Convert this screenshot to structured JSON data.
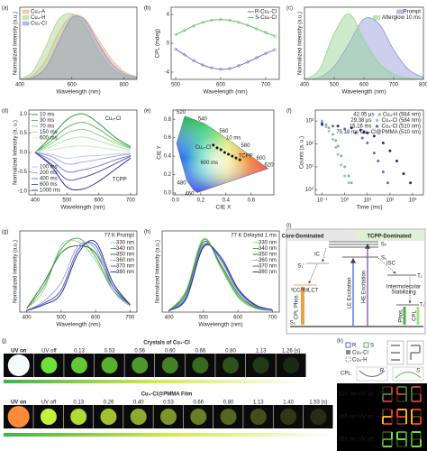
{
  "chart_data": [
    {
      "panel": "(a)",
      "type": "area",
      "xlabel": "Wavelength (nm)",
      "ylabel": "Normalized Intensity (a.u.)",
      "xlim": [
        400,
        850
      ],
      "ylim": [
        0,
        1.1
      ],
      "xticks": [
        400,
        600,
        800
      ],
      "legend": "upper left",
      "x": [
        400,
        450,
        500,
        550,
        600,
        650,
        700,
        750,
        800,
        850
      ],
      "series": [
        {
          "name": "Cu₄-A",
          "color": "#f4b183",
          "values": [
            0,
            0.06,
            0.3,
            0.72,
            0.97,
            0.92,
            0.62,
            0.32,
            0.12,
            0.04
          ]
        },
        {
          "name": "Cu₄-H",
          "color": "#a9d18e",
          "values": [
            0,
            0.12,
            0.5,
            0.92,
            1.0,
            0.82,
            0.45,
            0.18,
            0.06,
            0.02
          ]
        },
        {
          "name": "Cu₄-Cl",
          "color": "#8f96cc",
          "values": [
            0,
            0.03,
            0.18,
            0.58,
            0.94,
            0.9,
            0.56,
            0.26,
            0.09,
            0.03
          ]
        }
      ]
    },
    {
      "panel": "(b)",
      "type": "line",
      "markers": true,
      "xlabel": "Wavelength (nm)",
      "ylabel": "CPL (mdeg)",
      "xlim": [
        490,
        730
      ],
      "ylim": [
        -5,
        5
      ],
      "xticks": [
        500,
        600,
        700
      ],
      "yticks": [
        -4,
        0,
        4
      ],
      "legend": "upper right",
      "x": [
        500,
        520,
        540,
        560,
        580,
        600,
        620,
        640,
        660,
        680,
        700,
        720
      ],
      "series": [
        {
          "name": "R-Cu₄-Cl",
          "color": "#6f6fc9",
          "values": [
            -0.8,
            -1.6,
            -2.4,
            -3.0,
            -3.4,
            -3.6,
            -3.5,
            -3.1,
            -2.6,
            -2.0,
            -1.4,
            -0.9
          ]
        },
        {
          "name": "S-Cu₄-Cl",
          "color": "#5fbf5f",
          "values": [
            1.2,
            1.8,
            2.4,
            2.9,
            3.2,
            3.3,
            3.2,
            2.9,
            2.5,
            2.0,
            1.5,
            1.0
          ]
        }
      ]
    },
    {
      "panel": "(c)",
      "type": "area",
      "xlabel": "Wavelength (nm)",
      "ylabel": "Normalized Intensity (a.u.)",
      "xlim": [
        400,
        800
      ],
      "ylim": [
        0,
        1.1
      ],
      "xticks": [
        400,
        500,
        600,
        700,
        800
      ],
      "legend": "upper right",
      "x": [
        400,
        450,
        500,
        550,
        600,
        650,
        700,
        750,
        800
      ],
      "series": [
        {
          "name": "Prompt",
          "color": "#8e96d8",
          "values": [
            0,
            0.03,
            0.2,
            0.55,
            0.92,
            0.85,
            0.45,
            0.15,
            0.03
          ]
        },
        {
          "name": "Afterglow 10 ms",
          "color": "#90d38f",
          "values": [
            0,
            0.15,
            0.7,
            1.0,
            0.6,
            0.25,
            0.08,
            0.02,
            0
          ]
        }
      ]
    },
    {
      "panel": "(d)",
      "type": "line",
      "xlabel": "Wavelength (nm)",
      "ylabel": "Normalized Intensity (a. u.)",
      "xlim": [
        380,
        720
      ],
      "ylim": [
        -1.1,
        1.1
      ],
      "xticks": [
        400,
        500,
        600,
        700
      ],
      "yticks": [
        {
          "value": -1,
          "label": "-1.0"
        },
        -0.5,
        {
          "value": 0,
          "label": "0.0"
        },
        0.5,
        {
          "value": 1,
          "label": "1.0"
        }
      ],
      "legend": "upper left",
      "annotations": [
        "Cu₄-Cl",
        "TCPP"
      ],
      "x": [
        400,
        450,
        500,
        550,
        600,
        650,
        700
      ],
      "series": [
        {
          "name": "10 ms",
          "color": "#2e9e3e",
          "values": [
            0,
            0.4,
            0.85,
            1.0,
            0.75,
            0.4,
            0.15
          ]
        },
        {
          "name": "30 ms",
          "color": "#5cb85c",
          "values": [
            0,
            0.3,
            0.65,
            0.78,
            0.6,
            0.32,
            0.12
          ]
        },
        {
          "name": "70 ms",
          "color": "#8fcf8f",
          "values": [
            0,
            0.22,
            0.5,
            0.6,
            0.45,
            0.25,
            0.1
          ]
        },
        {
          "name": "150 ms",
          "color": "#b5dfb5",
          "values": [
            0,
            0.15,
            0.33,
            0.4,
            0.3,
            0.17,
            0.06
          ]
        },
        {
          "name": "600 ms",
          "color": "#cfe8cf",
          "values": [
            0,
            0.06,
            0.14,
            0.17,
            0.13,
            0.07,
            0.03
          ]
        },
        {
          "name": "100 ms",
          "color": "#c7c9e8",
          "values": [
            0,
            -0.05,
            -0.15,
            -0.1,
            -0.08,
            -0.04,
            -0.02
          ]
        },
        {
          "name": "200 ms",
          "color": "#a3a7da",
          "values": [
            0,
            -0.1,
            -0.3,
            -0.25,
            -0.18,
            -0.1,
            -0.04
          ]
        },
        {
          "name": "400 ms",
          "color": "#7a80c9",
          "values": [
            0,
            -0.2,
            -0.5,
            -0.45,
            -0.35,
            -0.2,
            -0.08
          ]
        },
        {
          "name": "600 ms",
          "color": "#5258b5",
          "values": [
            0,
            -0.3,
            -0.7,
            -0.65,
            -0.5,
            -0.3,
            -0.1
          ]
        },
        {
          "name": "1000 ms",
          "color": "#2d3396",
          "values": [
            0,
            -0.35,
            -0.9,
            -0.95,
            -0.75,
            -0.45,
            -0.15
          ]
        }
      ]
    },
    {
      "panel": "(e)",
      "type": "cie",
      "xlabel": "CIE X",
      "ylabel": "CIE Y",
      "xlim": [
        -0.02,
        0.78
      ],
      "ylim": [
        -0.02,
        0.9
      ],
      "xticks": [
        {
          "value": 0,
          "label": "0.0"
        },
        0.2,
        0.4,
        0.6
      ],
      "yticks": [
        {
          "value": 0,
          "label": "0.0"
        },
        0.2,
        0.4,
        0.6,
        0.8
      ],
      "locus": {
        "labels": [
          null,
          "460",
          "480",
          null,
          "520",
          "540",
          "560",
          "580",
          "600",
          "620",
          null
        ],
        "x": [
          0.174,
          0.144,
          0.091,
          0.008,
          0.074,
          0.23,
          0.373,
          0.512,
          0.627,
          0.691,
          0.735
        ],
        "y": [
          0.005,
          0.03,
          0.133,
          0.538,
          0.834,
          0.754,
          0.624,
          0.487,
          0.372,
          0.308,
          0.265
        ]
      },
      "annotations": [
        "Cu₄-Cl",
        "10 ms",
        "600 ms",
        "TCPP"
      ],
      "series": [
        {
          "color": "#111111",
          "x": [
            0.3,
            0.33,
            0.36,
            0.39,
            0.42,
            0.45,
            0.48,
            0.51
          ],
          "values": [
            0.52,
            0.49,
            0.47,
            0.44,
            0.42,
            0.4,
            0.38,
            0.36
          ]
        }
      ]
    },
    {
      "panel": "(f)",
      "type": "scatter",
      "xscale": "log",
      "yscale": "log",
      "xlabel": "Time (ms)",
      "ylabel": "Counts (a. u.)",
      "xlim": [
        0.05,
        3000
      ],
      "ylim": [
        0.6,
        3000
      ],
      "xticks": [
        {
          "value": 0.1,
          "label": "10⁻¹"
        },
        {
          "value": 1,
          "label": "10⁰"
        },
        {
          "value": 10,
          "label": "10¹"
        },
        {
          "value": 100,
          "label": "10²"
        },
        {
          "value": 1000,
          "label": "10³"
        }
      ],
      "yticks": [
        {
          "value": 1,
          "label": "10⁰"
        },
        {
          "value": 10,
          "label": "10¹"
        },
        {
          "value": 100,
          "label": "10²"
        },
        {
          "value": 1000,
          "label": "10³"
        }
      ],
      "legend": "upper right",
      "series": [
        {
          "name": "Cu₄-H (584 nm)",
          "lifetime": "42.05 μs",
          "color": "#7cc47c",
          "x": [
            0.1,
            0.15,
            0.2,
            0.3,
            0.4,
            0.5,
            0.7,
            1,
            1.5,
            2
          ],
          "values": [
            1000,
            700,
            500,
            260,
            140,
            80,
            30,
            10,
            4,
            2
          ]
        },
        {
          "name": "Cu₄-Cl (584 nm)",
          "lifetime": "29.38 μs",
          "color": "#b0b0e6",
          "x": [
            0.1,
            0.15,
            0.2,
            0.3,
            0.4,
            0.5,
            0.7,
            1,
            1.5
          ],
          "values": [
            900,
            560,
            360,
            160,
            70,
            35,
            12,
            4,
            2
          ]
        },
        {
          "name": "Cu₄-Cl (510 nm)",
          "lifetime": "15.16 ms",
          "color": "#5a68d2",
          "x": [
            0.1,
            0.3,
            1,
            3,
            6,
            10,
            20,
            30,
            50,
            80
          ],
          "values": [
            800,
            600,
            450,
            300,
            180,
            110,
            40,
            18,
            6,
            2
          ]
        },
        {
          "name": "Cu₄-Cl@PMMA (510 nm)",
          "lifetime": "75.18 ms",
          "color": "#1f2d8c",
          "x": [
            0.1,
            0.5,
            2,
            5,
            10,
            20,
            50,
            100,
            200,
            400,
            800
          ],
          "values": [
            700,
            600,
            500,
            400,
            300,
            220,
            110,
            50,
            18,
            5,
            2
          ]
        }
      ]
    },
    {
      "panel": "(g)",
      "type": "line",
      "title": "77 K Prompt",
      "xlabel": "Wavelength (nm)",
      "ylabel": "Normalized Intensity (a.u.)",
      "xlim": [
        380,
        720
      ],
      "ylim": [
        0,
        1.1
      ],
      "xticks": [
        400,
        500,
        600,
        700
      ],
      "legend": "upper right",
      "x": [
        400,
        450,
        500,
        550,
        600,
        650,
        700
      ],
      "series": [
        {
          "name": "330 nm",
          "color": "#9fd69f",
          "values": [
            0.05,
            0.3,
            0.9,
            0.95,
            0.7,
            0.3,
            0.1
          ]
        },
        {
          "name": "340 nm",
          "color": "#4caf50",
          "values": [
            0.05,
            0.35,
            0.85,
            1.0,
            0.75,
            0.3,
            0.1
          ]
        },
        {
          "name": "350 nm",
          "color": "#2e7d32",
          "values": [
            0.05,
            0.4,
            0.8,
            0.9,
            0.8,
            0.35,
            0.1
          ]
        },
        {
          "name": "360 nm",
          "color": "#a3a7da",
          "values": [
            0.02,
            0.15,
            0.4,
            0.9,
            0.85,
            0.3,
            0.08
          ]
        },
        {
          "name": "370 nm",
          "color": "#5a62c4",
          "values": [
            0.02,
            0.12,
            0.3,
            0.85,
            0.9,
            0.35,
            0.1
          ]
        },
        {
          "name": "380 nm",
          "color": "#2d3396",
          "values": [
            0.02,
            0.1,
            0.25,
            0.8,
            0.95,
            0.4,
            0.1
          ]
        }
      ]
    },
    {
      "panel": "(h)",
      "type": "line",
      "title": "77 K Delayed 1 ms",
      "xlabel": "Wavelength (nm)",
      "ylabel": "Normalized Intensity (a.u.)",
      "xlim": [
        380,
        720
      ],
      "ylim": [
        0,
        1.1
      ],
      "xticks": [
        400,
        500,
        600,
        700
      ],
      "legend": "upper right",
      "x": [
        400,
        450,
        500,
        550,
        600,
        650,
        700
      ],
      "series": [
        {
          "name": "330 nm",
          "color": "#9fd69f",
          "values": [
            0.02,
            0.3,
            1.0,
            0.6,
            0.2,
            0.05,
            0.02
          ]
        },
        {
          "name": "340 nm",
          "color": "#4caf50",
          "values": [
            0.02,
            0.28,
            0.98,
            0.62,
            0.22,
            0.06,
            0.02
          ]
        },
        {
          "name": "350 nm",
          "color": "#2e7d32",
          "values": [
            0.02,
            0.25,
            0.95,
            0.65,
            0.25,
            0.07,
            0.02
          ]
        },
        {
          "name": "360 nm",
          "color": "#a3a7da",
          "values": [
            0.02,
            0.22,
            0.92,
            0.7,
            0.28,
            0.08,
            0.02
          ]
        },
        {
          "name": "370 nm",
          "color": "#5a62c4",
          "values": [
            0.02,
            0.2,
            0.9,
            0.72,
            0.3,
            0.09,
            0.03
          ]
        },
        {
          "name": "380 nm",
          "color": "#2d3396",
          "values": [
            0.02,
            0.18,
            0.88,
            0.75,
            0.32,
            0.1,
            0.03
          ]
        }
      ]
    }
  ],
  "diagram": {
    "panel": "(i)",
    "labels": [
      "Core-Dominated",
      "TCPP-Dominated",
      "Sₙ",
      "S₁",
      "S₁'",
      "T₁",
      "T₁'",
      "IC",
      "ISC",
      "³CC/³MLCT",
      "LE Excitation",
      "HE Excitation",
      "Intermolecular",
      "Stabilizing",
      "CPL Phos.",
      "Phos.",
      "CPL",
      "S₀"
    ]
  },
  "photos": {
    "panel": "(j)",
    "rows": [
      {
        "title": "Crystals of Cu₄-Cl",
        "times": [
          "UV on",
          "UV off",
          "0.13",
          "0.53",
          "0.56",
          "0.60",
          "0.66",
          "0.80",
          "1.13",
          "1.26 (s)"
        ]
      },
      {
        "title": "Cu₄-Cl@PMMA Film",
        "times": [
          "UV on",
          "UV off",
          "0.13",
          "0.26",
          "0.40",
          "0.53",
          "0.66",
          "0.80",
          "1.13",
          "1.40",
          "1.53 (s)"
        ]
      }
    ]
  },
  "display": {
    "panel": "(k)",
    "legend": [
      "R",
      "S",
      "Cu₄-Cl",
      "Cu₄-H"
    ],
    "cpl": "CPL",
    "cpl_labels": [
      "R",
      "S"
    ],
    "rows": [
      "310 nm UV on",
      "365 nm UV on",
      "365 nm UV off"
    ]
  }
}
